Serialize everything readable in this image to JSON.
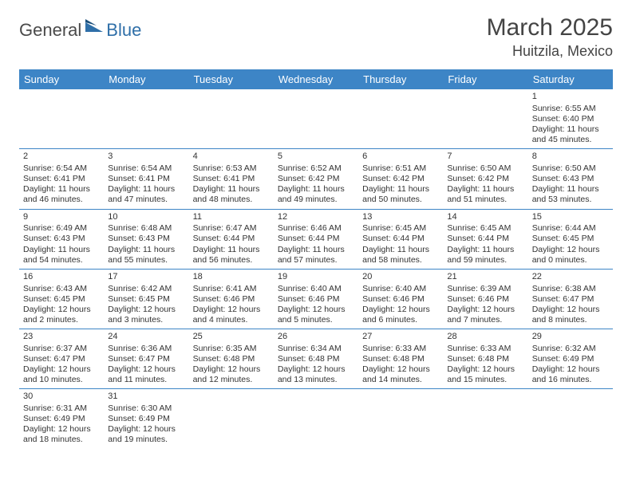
{
  "brand": {
    "part1": "General",
    "part2": "Blue"
  },
  "title": "March 2025",
  "location": "Huitzila, Mexico",
  "colors": {
    "headerBg": "#3d85c6",
    "headerText": "#ffffff",
    "border": "#3d85c6",
    "logoBlue": "#2f6fa8"
  },
  "dayHeaders": [
    "Sunday",
    "Monday",
    "Tuesday",
    "Wednesday",
    "Thursday",
    "Friday",
    "Saturday"
  ],
  "weeks": [
    [
      null,
      null,
      null,
      null,
      null,
      null,
      {
        "n": "1",
        "sr": "Sunrise: 6:55 AM",
        "ss": "Sunset: 6:40 PM",
        "dl": "Daylight: 11 hours and 45 minutes."
      }
    ],
    [
      {
        "n": "2",
        "sr": "Sunrise: 6:54 AM",
        "ss": "Sunset: 6:41 PM",
        "dl": "Daylight: 11 hours and 46 minutes."
      },
      {
        "n": "3",
        "sr": "Sunrise: 6:54 AM",
        "ss": "Sunset: 6:41 PM",
        "dl": "Daylight: 11 hours and 47 minutes."
      },
      {
        "n": "4",
        "sr": "Sunrise: 6:53 AM",
        "ss": "Sunset: 6:41 PM",
        "dl": "Daylight: 11 hours and 48 minutes."
      },
      {
        "n": "5",
        "sr": "Sunrise: 6:52 AM",
        "ss": "Sunset: 6:42 PM",
        "dl": "Daylight: 11 hours and 49 minutes."
      },
      {
        "n": "6",
        "sr": "Sunrise: 6:51 AM",
        "ss": "Sunset: 6:42 PM",
        "dl": "Daylight: 11 hours and 50 minutes."
      },
      {
        "n": "7",
        "sr": "Sunrise: 6:50 AM",
        "ss": "Sunset: 6:42 PM",
        "dl": "Daylight: 11 hours and 51 minutes."
      },
      {
        "n": "8",
        "sr": "Sunrise: 6:50 AM",
        "ss": "Sunset: 6:43 PM",
        "dl": "Daylight: 11 hours and 53 minutes."
      }
    ],
    [
      {
        "n": "9",
        "sr": "Sunrise: 6:49 AM",
        "ss": "Sunset: 6:43 PM",
        "dl": "Daylight: 11 hours and 54 minutes."
      },
      {
        "n": "10",
        "sr": "Sunrise: 6:48 AM",
        "ss": "Sunset: 6:43 PM",
        "dl": "Daylight: 11 hours and 55 minutes."
      },
      {
        "n": "11",
        "sr": "Sunrise: 6:47 AM",
        "ss": "Sunset: 6:44 PM",
        "dl": "Daylight: 11 hours and 56 minutes."
      },
      {
        "n": "12",
        "sr": "Sunrise: 6:46 AM",
        "ss": "Sunset: 6:44 PM",
        "dl": "Daylight: 11 hours and 57 minutes."
      },
      {
        "n": "13",
        "sr": "Sunrise: 6:45 AM",
        "ss": "Sunset: 6:44 PM",
        "dl": "Daylight: 11 hours and 58 minutes."
      },
      {
        "n": "14",
        "sr": "Sunrise: 6:45 AM",
        "ss": "Sunset: 6:44 PM",
        "dl": "Daylight: 11 hours and 59 minutes."
      },
      {
        "n": "15",
        "sr": "Sunrise: 6:44 AM",
        "ss": "Sunset: 6:45 PM",
        "dl": "Daylight: 12 hours and 0 minutes."
      }
    ],
    [
      {
        "n": "16",
        "sr": "Sunrise: 6:43 AM",
        "ss": "Sunset: 6:45 PM",
        "dl": "Daylight: 12 hours and 2 minutes."
      },
      {
        "n": "17",
        "sr": "Sunrise: 6:42 AM",
        "ss": "Sunset: 6:45 PM",
        "dl": "Daylight: 12 hours and 3 minutes."
      },
      {
        "n": "18",
        "sr": "Sunrise: 6:41 AM",
        "ss": "Sunset: 6:46 PM",
        "dl": "Daylight: 12 hours and 4 minutes."
      },
      {
        "n": "19",
        "sr": "Sunrise: 6:40 AM",
        "ss": "Sunset: 6:46 PM",
        "dl": "Daylight: 12 hours and 5 minutes."
      },
      {
        "n": "20",
        "sr": "Sunrise: 6:40 AM",
        "ss": "Sunset: 6:46 PM",
        "dl": "Daylight: 12 hours and 6 minutes."
      },
      {
        "n": "21",
        "sr": "Sunrise: 6:39 AM",
        "ss": "Sunset: 6:46 PM",
        "dl": "Daylight: 12 hours and 7 minutes."
      },
      {
        "n": "22",
        "sr": "Sunrise: 6:38 AM",
        "ss": "Sunset: 6:47 PM",
        "dl": "Daylight: 12 hours and 8 minutes."
      }
    ],
    [
      {
        "n": "23",
        "sr": "Sunrise: 6:37 AM",
        "ss": "Sunset: 6:47 PM",
        "dl": "Daylight: 12 hours and 10 minutes."
      },
      {
        "n": "24",
        "sr": "Sunrise: 6:36 AM",
        "ss": "Sunset: 6:47 PM",
        "dl": "Daylight: 12 hours and 11 minutes."
      },
      {
        "n": "25",
        "sr": "Sunrise: 6:35 AM",
        "ss": "Sunset: 6:48 PM",
        "dl": "Daylight: 12 hours and 12 minutes."
      },
      {
        "n": "26",
        "sr": "Sunrise: 6:34 AM",
        "ss": "Sunset: 6:48 PM",
        "dl": "Daylight: 12 hours and 13 minutes."
      },
      {
        "n": "27",
        "sr": "Sunrise: 6:33 AM",
        "ss": "Sunset: 6:48 PM",
        "dl": "Daylight: 12 hours and 14 minutes."
      },
      {
        "n": "28",
        "sr": "Sunrise: 6:33 AM",
        "ss": "Sunset: 6:48 PM",
        "dl": "Daylight: 12 hours and 15 minutes."
      },
      {
        "n": "29",
        "sr": "Sunrise: 6:32 AM",
        "ss": "Sunset: 6:49 PM",
        "dl": "Daylight: 12 hours and 16 minutes."
      }
    ],
    [
      {
        "n": "30",
        "sr": "Sunrise: 6:31 AM",
        "ss": "Sunset: 6:49 PM",
        "dl": "Daylight: 12 hours and 18 minutes."
      },
      {
        "n": "31",
        "sr": "Sunrise: 6:30 AM",
        "ss": "Sunset: 6:49 PM",
        "dl": "Daylight: 12 hours and 19 minutes."
      },
      null,
      null,
      null,
      null,
      null
    ]
  ]
}
